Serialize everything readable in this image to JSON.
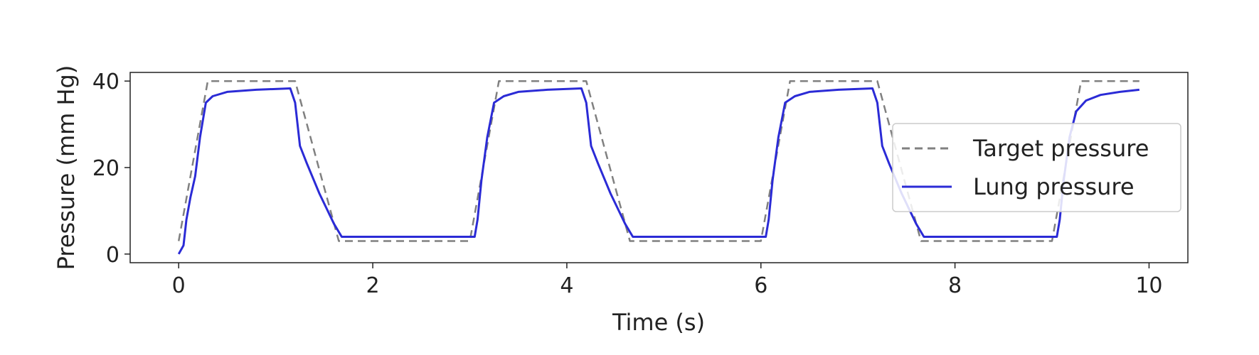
{
  "chart_data": {
    "type": "line",
    "xlabel": "Time (s)",
    "ylabel": "Pressure (mm Hg)",
    "xlim": [
      -0.5,
      10.4
    ],
    "ylim": [
      -2,
      42
    ],
    "x_ticks": [
      0,
      2,
      4,
      6,
      8,
      10
    ],
    "y_ticks": [
      0,
      20,
      40
    ],
    "grid": false,
    "legend_position": "right",
    "series": [
      {
        "name": "Target pressure",
        "color": "#808080",
        "style": "dashed",
        "points": [
          [
            0,
            3
          ],
          [
            0.3,
            40
          ],
          [
            1.2,
            40
          ],
          [
            1.65,
            3
          ],
          [
            3.0,
            3
          ],
          [
            3.3,
            40
          ],
          [
            4.2,
            40
          ],
          [
            4.65,
            3
          ],
          [
            6.0,
            3
          ],
          [
            6.3,
            40
          ],
          [
            7.2,
            40
          ],
          [
            7.65,
            3
          ],
          [
            9.0,
            3
          ],
          [
            9.3,
            40
          ],
          [
            9.9,
            40
          ]
        ]
      },
      {
        "name": "Lung pressure",
        "color": "#2b2bd6",
        "style": "solid",
        "points": [
          [
            0,
            0
          ],
          [
            0.05,
            2
          ],
          [
            0.08,
            8
          ],
          [
            0.12,
            13
          ],
          [
            0.17,
            18
          ],
          [
            0.22,
            27
          ],
          [
            0.28,
            35
          ],
          [
            0.35,
            36.5
          ],
          [
            0.5,
            37.5
          ],
          [
            0.8,
            38
          ],
          [
            1.15,
            38.3
          ],
          [
            1.2,
            35
          ],
          [
            1.25,
            25
          ],
          [
            1.32,
            21
          ],
          [
            1.45,
            14
          ],
          [
            1.6,
            7
          ],
          [
            1.68,
            4
          ],
          [
            3.05,
            4
          ],
          [
            3.08,
            8
          ],
          [
            3.12,
            17
          ],
          [
            3.18,
            27
          ],
          [
            3.25,
            35
          ],
          [
            3.35,
            36.5
          ],
          [
            3.5,
            37.5
          ],
          [
            3.8,
            38
          ],
          [
            4.15,
            38.3
          ],
          [
            4.2,
            35
          ],
          [
            4.25,
            25
          ],
          [
            4.32,
            21
          ],
          [
            4.45,
            14
          ],
          [
            4.6,
            7
          ],
          [
            4.68,
            4
          ],
          [
            6.05,
            4
          ],
          [
            6.08,
            8
          ],
          [
            6.12,
            17
          ],
          [
            6.18,
            27
          ],
          [
            6.25,
            35
          ],
          [
            6.35,
            36.5
          ],
          [
            6.5,
            37.5
          ],
          [
            6.8,
            38
          ],
          [
            7.15,
            38.3
          ],
          [
            7.2,
            35
          ],
          [
            7.25,
            25
          ],
          [
            7.32,
            21
          ],
          [
            7.45,
            14
          ],
          [
            7.6,
            7
          ],
          [
            7.68,
            4
          ],
          [
            9.05,
            4
          ],
          [
            9.08,
            8
          ],
          [
            9.12,
            17
          ],
          [
            9.18,
            27
          ],
          [
            9.25,
            33
          ],
          [
            9.35,
            35.5
          ],
          [
            9.5,
            36.8
          ],
          [
            9.7,
            37.5
          ],
          [
            9.9,
            38
          ]
        ]
      }
    ]
  }
}
